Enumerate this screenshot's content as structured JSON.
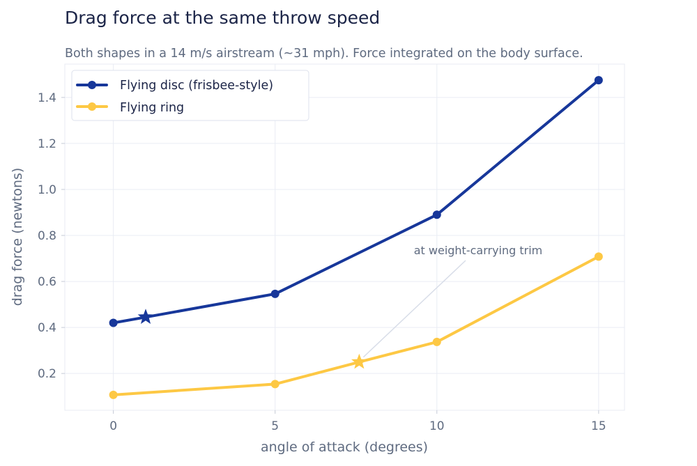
{
  "chart_data": {
    "type": "line",
    "title": "Drag force at the same throw speed",
    "subtitle": "Both shapes in a 14 m/s airstream (~31 mph). Force integrated on the body surface.",
    "xlabel": "angle of attack  (degrees)",
    "ylabel": "drag force  (newtons)",
    "xlim": [
      -1.5,
      15.8
    ],
    "ylim": [
      0.04,
      1.545
    ],
    "xticks": [
      0,
      5,
      10,
      15
    ],
    "yticks": [
      0.2,
      0.4,
      0.6,
      0.8,
      1.0,
      1.2,
      1.4
    ],
    "xtick_labels": [
      "0",
      "5",
      "10",
      "15"
    ],
    "ytick_labels": [
      "0.2",
      "0.4",
      "0.6",
      "0.8",
      "1.0",
      "1.2",
      "1.4"
    ],
    "grid": true,
    "legend_position": "top-left",
    "series": [
      {
        "name": "Flying disc (frisbee-style)",
        "color": "#17379a",
        "x": [
          0,
          5,
          10,
          15
        ],
        "y": [
          0.42,
          0.546,
          0.89,
          1.475
        ],
        "marker": {
          "x": 1.0,
          "y": 0.445,
          "shape": "star"
        }
      },
      {
        "name": "Flying ring",
        "color": "#fdc844",
        "x": [
          0,
          5,
          10,
          15
        ],
        "y": [
          0.107,
          0.154,
          0.337,
          0.708
        ],
        "marker": {
          "x": 7.6,
          "y": 0.25,
          "shape": "star"
        }
      }
    ],
    "annotations": [
      {
        "text": "at weight-carrying trim",
        "target_series": 1
      }
    ]
  }
}
